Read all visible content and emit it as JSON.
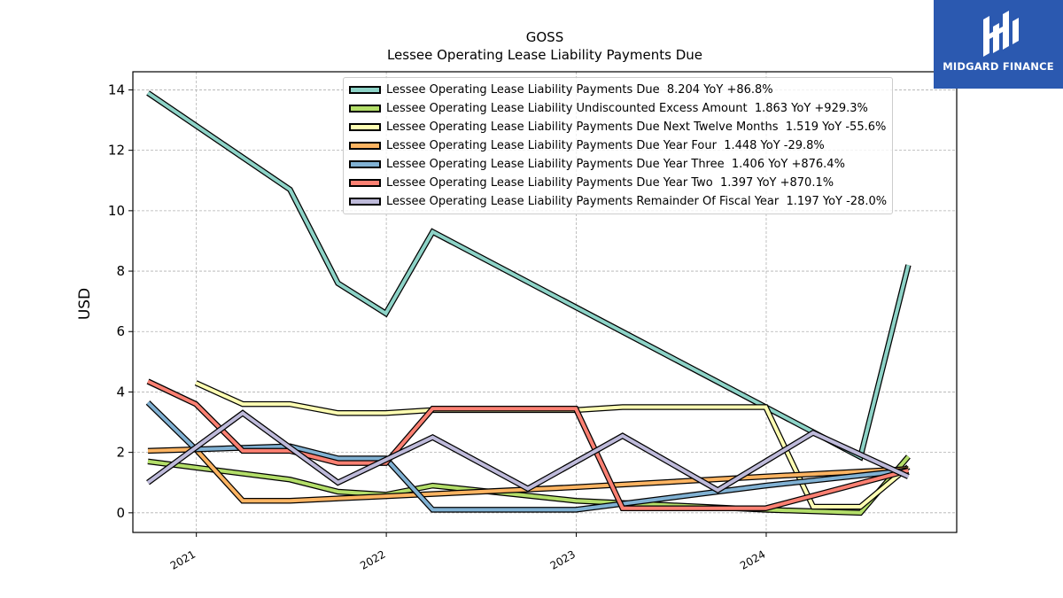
{
  "chart_data": {
    "type": "line",
    "title": "GOSS",
    "subtitle": "Lessee Operating Lease Liability Payments Due",
    "ylabel": "USD",
    "xlabel": "",
    "ylim": [
      -0.65,
      14.6
    ],
    "xlim": [
      "2020-09-01",
      "2025-01-01"
    ],
    "grid": true,
    "legend_position": "top-right",
    "x_tick_labels": [
      "2021",
      "2022",
      "2023",
      "2024"
    ],
    "y_tick_labels": [
      "0",
      "2",
      "4",
      "6",
      "8",
      "10",
      "12",
      "14"
    ],
    "series": [
      {
        "name": "Lessee Operating Lease Liability Payments Due",
        "legend_label": "Lessee Operating Lease Liability Payments Due  8.204 YoY +86.8%",
        "color": "#8dd3c7",
        "points": [
          [
            "2020-09-30",
            13.9
          ],
          [
            "2021-06-30",
            10.7
          ],
          [
            "2021-09-30",
            7.6
          ],
          [
            "2021-12-31",
            6.6
          ],
          [
            "2022-03-31",
            9.3
          ],
          [
            "2024-06-30",
            1.85
          ],
          [
            "2024-09-30",
            8.2
          ]
        ]
      },
      {
        "name": "Lessee Operating Lease Liability Undiscounted Excess Amount",
        "legend_label": "Lessee Operating Lease Liability Undiscounted Excess Amount  1.863 YoY +929.3%",
        "color": "#b3de69",
        "points": [
          [
            "2020-09-30",
            1.7
          ],
          [
            "2021-06-30",
            1.1
          ],
          [
            "2021-09-30",
            0.7
          ],
          [
            "2021-12-31",
            0.6
          ],
          [
            "2022-03-31",
            0.9
          ],
          [
            "2022-12-31",
            0.4
          ],
          [
            "2023-12-31",
            0.1
          ],
          [
            "2024-06-30",
            0.0
          ],
          [
            "2024-09-30",
            1.86
          ]
        ]
      },
      {
        "name": "Lessee Operating Lease Liability Payments Due Next Twelve Months",
        "legend_label": "Lessee Operating Lease Liability Payments Due Next Twelve Months  1.519 YoY -55.6%",
        "color": "#ffffb3",
        "points": [
          [
            "2020-12-31",
            4.3
          ],
          [
            "2021-03-31",
            3.6
          ],
          [
            "2021-06-30",
            3.6
          ],
          [
            "2021-09-30",
            3.3
          ],
          [
            "2021-12-31",
            3.3
          ],
          [
            "2022-03-31",
            3.4
          ],
          [
            "2022-12-31",
            3.4
          ],
          [
            "2023-03-31",
            3.5
          ],
          [
            "2023-12-31",
            3.5
          ],
          [
            "2024-03-31",
            0.2
          ],
          [
            "2024-06-30",
            0.2
          ],
          [
            "2024-09-30",
            1.52
          ]
        ]
      },
      {
        "name": "Lessee Operating Lease Liability Payments Due Year Four",
        "legend_label": "Lessee Operating Lease Liability Payments Due Year Four  1.448 YoY -29.8%",
        "color": "#fdb462",
        "points": [
          [
            "2020-09-30",
            2.05
          ],
          [
            "2020-12-31",
            2.1
          ],
          [
            "2021-03-31",
            0.4
          ],
          [
            "2021-06-30",
            0.4
          ],
          [
            "2021-12-31",
            0.55
          ],
          [
            "2022-12-31",
            0.85
          ],
          [
            "2023-12-31",
            1.2
          ],
          [
            "2024-09-30",
            1.45
          ]
        ]
      },
      {
        "name": "Lessee Operating Lease Liability Payments Due Year Three",
        "legend_label": "Lessee Operating Lease Liability Payments Due Year Three  1.406 YoY +876.4%",
        "color": "#80b1d3",
        "points": [
          [
            "2020-09-30",
            3.65
          ],
          [
            "2020-12-31",
            2.1
          ],
          [
            "2021-06-30",
            2.2
          ],
          [
            "2021-09-30",
            1.8
          ],
          [
            "2021-12-31",
            1.8
          ],
          [
            "2022-03-31",
            0.1
          ],
          [
            "2022-12-31",
            0.1
          ],
          [
            "2023-12-31",
            0.9
          ],
          [
            "2024-09-30",
            1.41
          ]
        ]
      },
      {
        "name": "Lessee Operating Lease Liability Payments Due Year Two",
        "legend_label": "Lessee Operating Lease Liability Payments Due Year Two  1.397 YoY +870.1%",
        "color": "#fb8072",
        "points": [
          [
            "2020-09-30",
            4.35
          ],
          [
            "2020-12-31",
            3.6
          ],
          [
            "2021-03-31",
            2.05
          ],
          [
            "2021-06-30",
            2.05
          ],
          [
            "2021-09-30",
            1.65
          ],
          [
            "2021-12-31",
            1.65
          ],
          [
            "2022-03-31",
            3.45
          ],
          [
            "2022-12-31",
            3.45
          ],
          [
            "2023-03-31",
            0.15
          ],
          [
            "2023-12-31",
            0.15
          ],
          [
            "2024-09-30",
            1.4
          ]
        ]
      },
      {
        "name": "Lessee Operating Lease Liability Payments Remainder Of Fiscal Year",
        "legend_label": "Lessee Operating Lease Liability Payments Remainder Of Fiscal Year  1.197 YoY -28.0%",
        "color": "#bebada",
        "points": [
          [
            "2020-09-30",
            1.0
          ],
          [
            "2021-03-31",
            3.3
          ],
          [
            "2021-09-30",
            1.0
          ],
          [
            "2022-03-31",
            2.5
          ],
          [
            "2022-09-30",
            0.8
          ],
          [
            "2023-03-31",
            2.55
          ],
          [
            "2023-09-30",
            0.75
          ],
          [
            "2024-03-31",
            2.65
          ],
          [
            "2024-09-30",
            1.2
          ]
        ]
      }
    ]
  },
  "brand": {
    "name": "MIDGARD FINANCE",
    "color": "#2b59b0"
  }
}
